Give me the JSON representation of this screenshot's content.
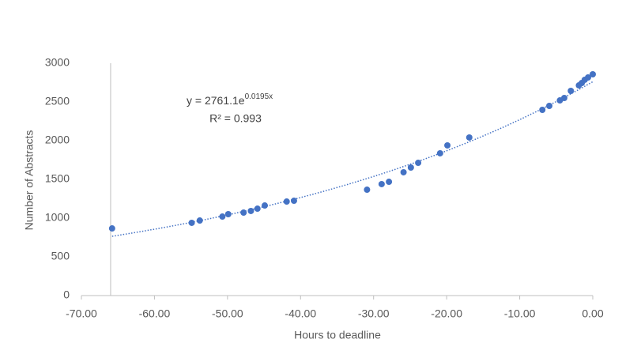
{
  "chart_data": {
    "type": "scatter",
    "x_label": "Hours to deadline",
    "y_label": "Number of Abstracts",
    "equation": "y = 2761.1e",
    "equation_exponent": "0.0195x",
    "r_squared": "R² = 0.993",
    "trendline": {
      "type": "exponential",
      "a": 2761.1,
      "b": 0.0195,
      "color": "#4472c4"
    },
    "y_axis_crossing": -66,
    "grid": false,
    "series": [
      {
        "name": "Abstracts",
        "color": "#4472c4",
        "x": [
          -65.8,
          -54.9,
          -53.8,
          -50.7,
          -49.9,
          -47.8,
          -46.8,
          -45.9,
          -44.9,
          -41.9,
          -40.9,
          -30.9,
          -28.9,
          -27.9,
          -25.9,
          -24.9,
          -23.9,
          -20.9,
          -19.9,
          -16.9,
          -6.9,
          -5.95,
          -4.5,
          -3.9,
          -3.0,
          -1.9,
          -1.5,
          -1.1,
          -0.65,
          0
        ],
        "values": [
          867,
          939,
          969,
          1020,
          1051,
          1071,
          1092,
          1122,
          1163,
          1214,
          1224,
          1367,
          1439,
          1469,
          1592,
          1653,
          1714,
          1837,
          1939,
          2041,
          2398,
          2449,
          2520,
          2551,
          2643,
          2714,
          2745,
          2786,
          2816,
          2857
        ]
      }
    ],
    "xlim": [
      -70,
      0
    ],
    "xticks": [
      {
        "value": -70,
        "label": "-70.00"
      },
      {
        "value": -60,
        "label": "-60.00"
      },
      {
        "value": -50,
        "label": "-50.00"
      },
      {
        "value": -40,
        "label": "-40.00"
      },
      {
        "value": -30,
        "label": "-30.00"
      },
      {
        "value": -20,
        "label": "-20.00"
      },
      {
        "value": -10,
        "label": "-10.00"
      },
      {
        "value": 0,
        "label": "0.00"
      }
    ],
    "ylim": [
      0,
      3000
    ],
    "yticks": [
      0,
      500,
      1000,
      1500,
      2000,
      2500,
      3000
    ]
  }
}
